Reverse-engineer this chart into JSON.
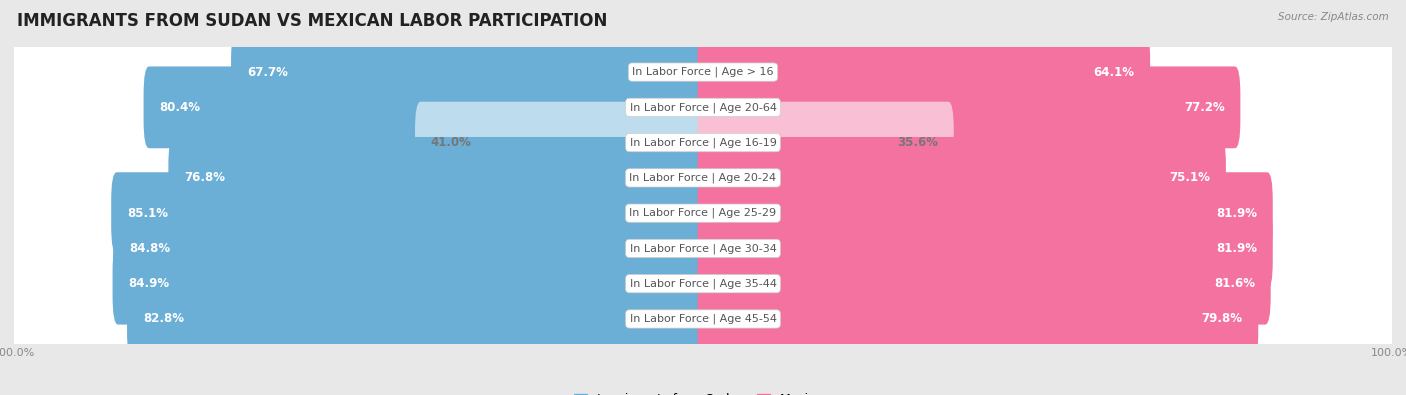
{
  "title": "IMMIGRANTS FROM SUDAN VS MEXICAN LABOR PARTICIPATION",
  "source": "Source: ZipAtlas.com",
  "categories": [
    "In Labor Force | Age > 16",
    "In Labor Force | Age 20-64",
    "In Labor Force | Age 16-19",
    "In Labor Force | Age 20-24",
    "In Labor Force | Age 25-29",
    "In Labor Force | Age 30-34",
    "In Labor Force | Age 35-44",
    "In Labor Force | Age 45-54"
  ],
  "sudan_values": [
    67.7,
    80.4,
    41.0,
    76.8,
    85.1,
    84.8,
    84.9,
    82.8
  ],
  "mexican_values": [
    64.1,
    77.2,
    35.6,
    75.1,
    81.9,
    81.9,
    81.6,
    79.8
  ],
  "sudan_color_full": "#6BAED6",
  "sudan_color_light": "#BDDCEE",
  "mexican_color_full": "#F472A0",
  "mexican_color_light": "#F9C0D5",
  "bg_color": "#e8e8e8",
  "pill_bg_color": "#f0f0f0",
  "pill_border_color": "#d0d0d0",
  "max_val": 100.0,
  "bar_height": 0.72,
  "title_fontsize": 12,
  "value_fontsize": 8.5,
  "cat_fontsize": 8,
  "tick_fontsize": 8,
  "legend_fontsize": 9
}
